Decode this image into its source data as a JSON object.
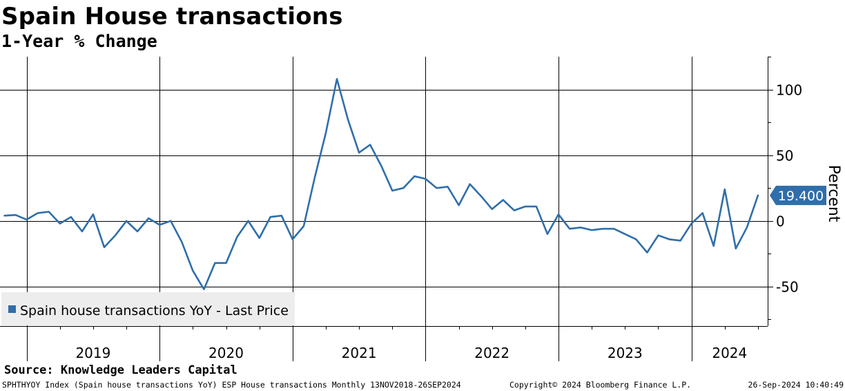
{
  "title": "Spain House transactions",
  "subtitle": "1-Year % Change",
  "source": "Source: Knowledge Leaders Capital",
  "footer": {
    "left": "SPHTHYOY Index (Spain house transactions YoY) ESP House transactions  Monthly 13NOV2018-26SEP2024",
    "mid": "Copyright© 2024 Bloomberg Finance L.P.",
    "right": "26-Sep-2024 10:40:49"
  },
  "colors": {
    "series": "#2f6eaa",
    "grid": "#000000",
    "legend_bg": "#ededed"
  },
  "chart_data": {
    "type": "line",
    "title": "Spain House transactions",
    "subtitle": "1-Year % Change",
    "ylabel": "Percent",
    "xlabel": "",
    "ylim": [
      -80,
      125
    ],
    "yticks": [
      -50,
      0,
      50,
      100
    ],
    "ytick_labels": [
      "-50",
      "0",
      "50",
      "100"
    ],
    "x_start": "2018-11",
    "x_end": "2024-09",
    "year_labels": [
      "2019",
      "2020",
      "2021",
      "2022",
      "2023",
      "2024"
    ],
    "grid": true,
    "legend_position": "bottom-left",
    "last_value_label": "19.400",
    "series": [
      {
        "name": "Spain house transactions YoY - Last Price",
        "x": [
          "2018-11",
          "2018-12",
          "2019-01",
          "2019-02",
          "2019-03",
          "2019-04",
          "2019-05",
          "2019-06",
          "2019-07",
          "2019-08",
          "2019-09",
          "2019-10",
          "2019-11",
          "2019-12",
          "2020-01",
          "2020-02",
          "2020-03",
          "2020-04",
          "2020-05",
          "2020-06",
          "2020-07",
          "2020-08",
          "2020-09",
          "2020-10",
          "2020-11",
          "2020-12",
          "2021-01",
          "2021-02",
          "2021-03",
          "2021-04",
          "2021-05",
          "2021-06",
          "2021-07",
          "2021-08",
          "2021-09",
          "2021-10",
          "2021-11",
          "2021-12",
          "2022-01",
          "2022-02",
          "2022-03",
          "2022-04",
          "2022-05",
          "2022-06",
          "2022-07",
          "2022-08",
          "2022-09",
          "2022-10",
          "2022-11",
          "2022-12",
          "2023-01",
          "2023-02",
          "2023-03",
          "2023-04",
          "2023-05",
          "2023-06",
          "2023-07",
          "2023-08",
          "2023-09",
          "2023-10",
          "2023-11",
          "2023-12",
          "2024-01",
          "2024-02",
          "2024-03",
          "2024-04",
          "2024-05",
          "2024-06",
          "2024-07"
        ],
        "values": [
          4,
          4.5,
          1,
          6,
          7,
          -2,
          3,
          -8,
          5,
          -20,
          -11,
          0,
          -8,
          2,
          -3,
          0,
          -16,
          -38,
          -52,
          -32,
          -32,
          -12,
          0,
          -13,
          3,
          4,
          -14,
          -4,
          33,
          67,
          108,
          77,
          52,
          58,
          42,
          23,
          25,
          34,
          32,
          25,
          26,
          12,
          28,
          19,
          9,
          16,
          8,
          11,
          11,
          -10,
          5,
          -6,
          -5,
          -7,
          -6,
          -6,
          -10,
          -14,
          -24,
          -11,
          -14,
          -15,
          -2,
          6,
          -19,
          24,
          -21,
          -5,
          19.4
        ]
      }
    ]
  }
}
